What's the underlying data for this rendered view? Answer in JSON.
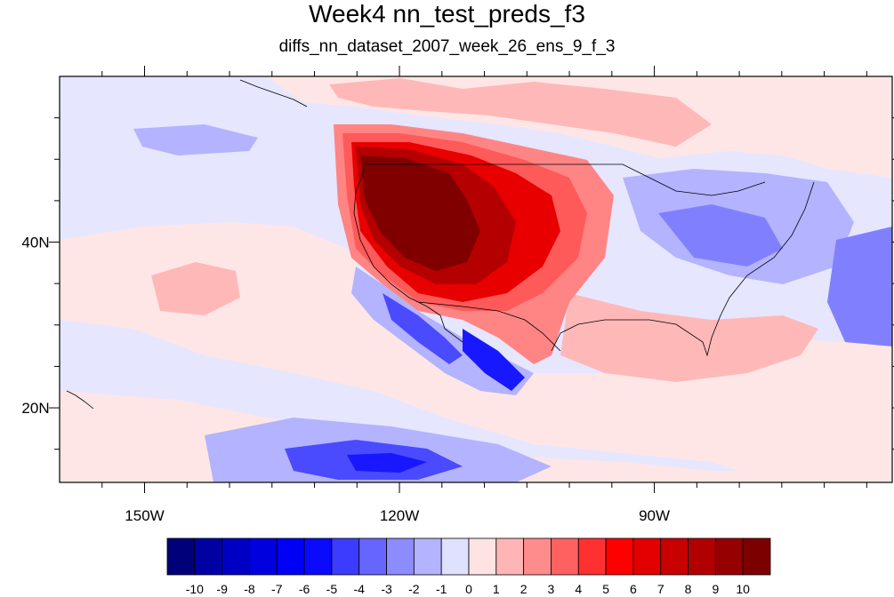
{
  "title": "Week4 nn_test_preds_f3",
  "subtitle": "diffs_nn_dataset_2007_week_26_ens_9_f_3",
  "map": {
    "lon_range": [
      -160,
      -62
    ],
    "lat_range": [
      11,
      60
    ],
    "x_ticks": [
      {
        "lon": -150,
        "label": "150W"
      },
      {
        "lon": -120,
        "label": "120W"
      },
      {
        "lon": -90,
        "label": "90W"
      }
    ],
    "y_ticks": [
      {
        "lat": 40,
        "label": "40N"
      },
      {
        "lat": 20,
        "label": "20N"
      }
    ]
  },
  "colorbar": {
    "colors": [
      "#00007a",
      "#0000a3",
      "#0000c4",
      "#0000df",
      "#0000f5",
      "#0a0aff",
      "#3c3cff",
      "#6666ff",
      "#8c8cff",
      "#b3b3ff",
      "#e0e0ff",
      "#ffe3e3",
      "#ffb5b5",
      "#ff8c8c",
      "#ff6161",
      "#ff3030",
      "#ff0000",
      "#e20000",
      "#c80000",
      "#b00000",
      "#960000",
      "#7d0000"
    ],
    "labels": [
      "-10",
      "-9",
      "-8",
      "-7",
      "-6",
      "-5",
      "-4",
      "-3",
      "-2",
      "-1",
      "0",
      "1",
      "2",
      "3",
      "4",
      "5",
      "6",
      "7",
      "8",
      "9",
      "10"
    ]
  }
}
